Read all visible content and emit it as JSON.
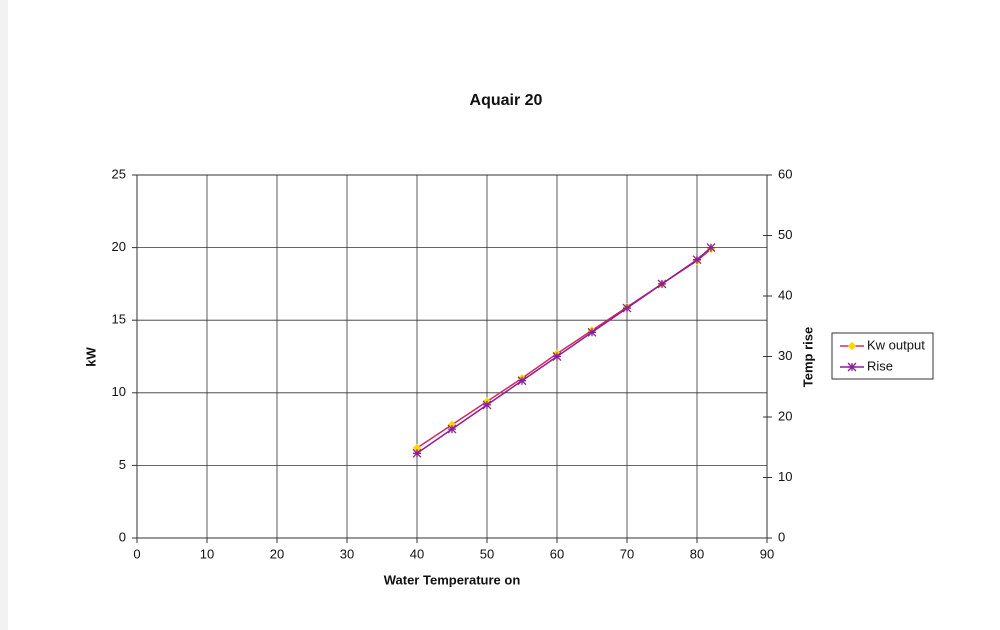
{
  "chart_data": {
    "type": "line",
    "title": "Aquair 20",
    "x_label": "Water Temperature on",
    "y_label": "kW",
    "y2_label": "Temp rise",
    "x": [
      40,
      45,
      50,
      55,
      60,
      65,
      70,
      75,
      80,
      82
    ],
    "series": [
      {
        "name": "Kw output",
        "color": "#d8285a",
        "marker_color": "#ffd700",
        "marker": "diamond",
        "values": [
          6.2,
          7.8,
          9.4,
          11.0,
          12.7,
          14.3,
          15.9,
          17.5,
          19.1,
          19.9
        ]
      },
      {
        "name": "Rise",
        "color": "#8a1f9a",
        "marker_color": "#8a1f9a",
        "marker": "star",
        "axis": "y2",
        "values": [
          14,
          18,
          22,
          26,
          30,
          34,
          38,
          42,
          46,
          48
        ]
      }
    ],
    "xlim": [
      0,
      90
    ],
    "xticks": [
      0,
      10,
      20,
      30,
      40,
      50,
      60,
      70,
      80,
      90
    ],
    "ylim": [
      0,
      25
    ],
    "yticks": [
      0,
      5,
      10,
      15,
      20,
      25
    ],
    "y2lim": [
      0,
      60
    ],
    "y2ticks": [
      0,
      10,
      20,
      30,
      40,
      50,
      60
    ],
    "grid": true,
    "legend": "right"
  }
}
